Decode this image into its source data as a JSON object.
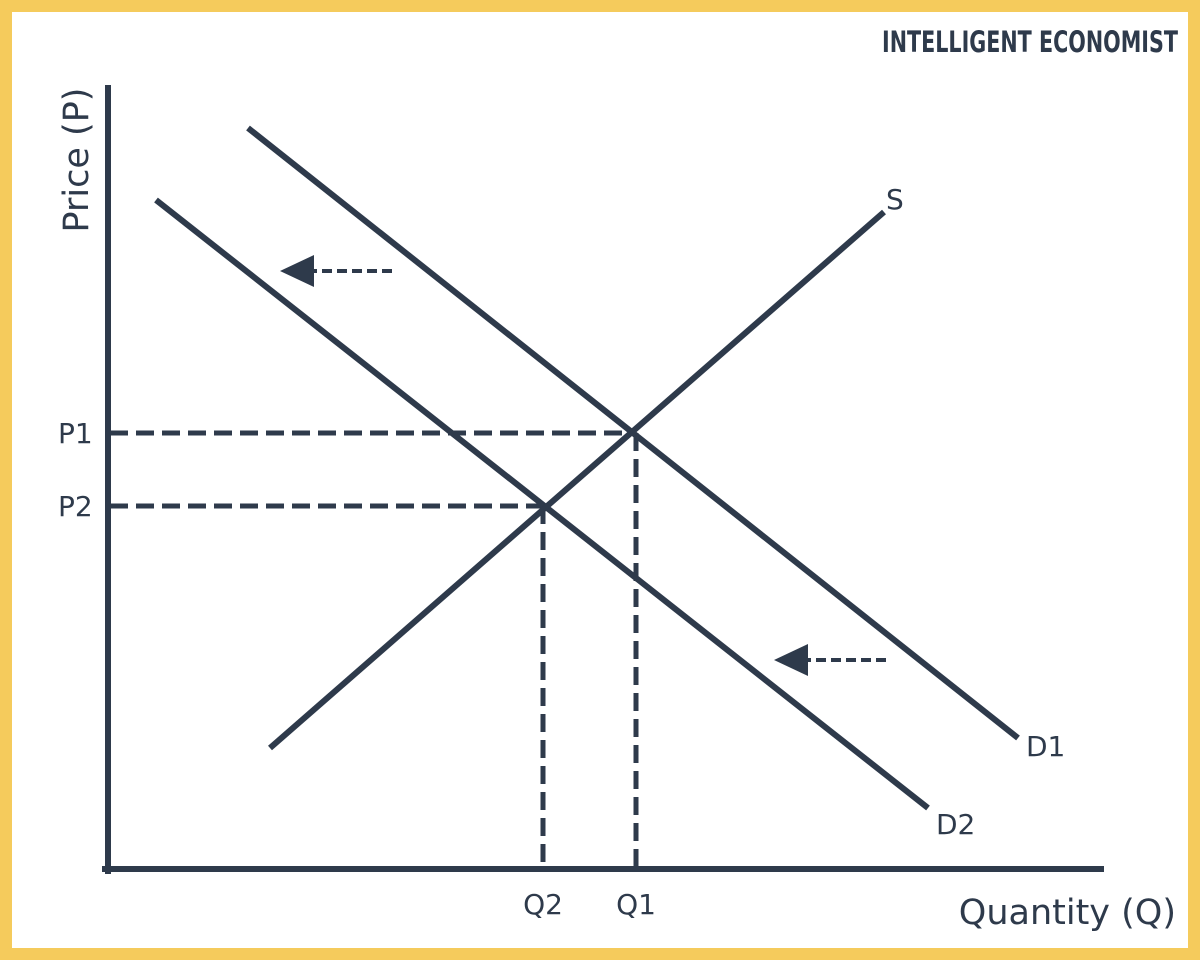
{
  "brand": "INTELLIGENT ECONOMIST",
  "axes": {
    "y_label": "Price (P)",
    "x_label": "Quantity (Q)"
  },
  "price_levels": {
    "p1": "P1",
    "p2": "P2"
  },
  "quantity_levels": {
    "q1": "Q1",
    "q2": "Q2"
  },
  "curves": {
    "supply": "S",
    "demand_original": "D1",
    "demand_new": "D2"
  },
  "shift_direction": "left",
  "colors": {
    "ink": "#2e3a4b",
    "border": "#f5cb5c",
    "background": "#ffffff"
  }
}
